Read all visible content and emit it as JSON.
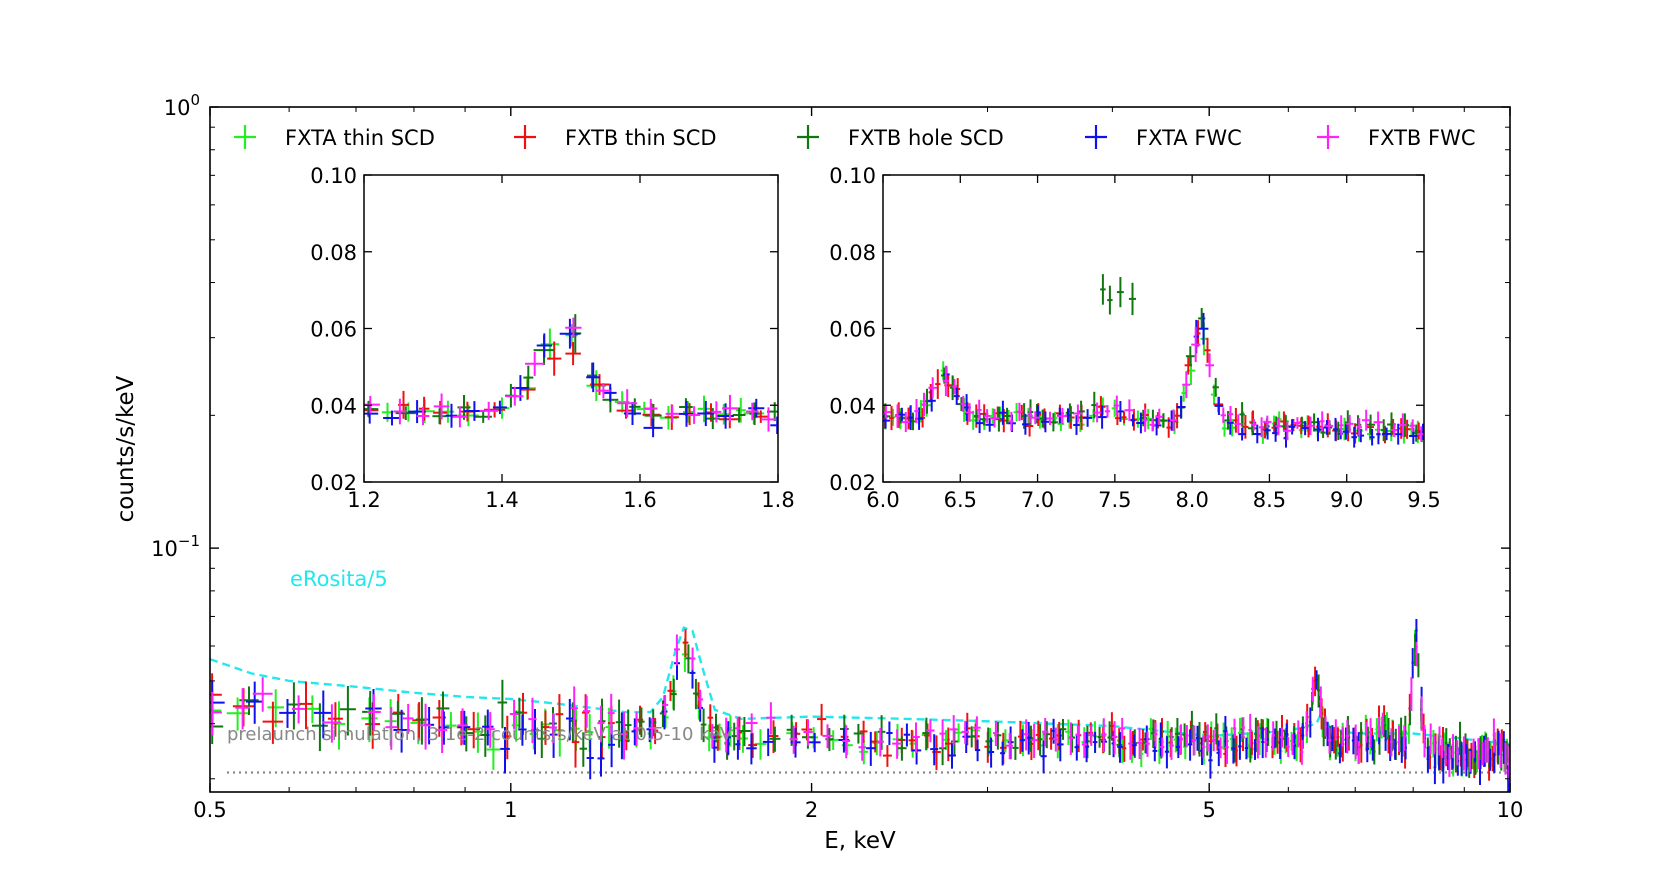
{
  "chart_data": {
    "type": "scatter",
    "title": "",
    "xlabel": "E, keV",
    "ylabel": "counts/s/keV",
    "x_scale": "log",
    "y_scale": "log",
    "xlim": [
      0.5,
      10
    ],
    "ylim": [
      0.028,
      1.0
    ],
    "x_ticks": [
      0.5,
      1,
      2,
      5,
      10
    ],
    "x_tick_labels": [
      "0.5",
      "1",
      "2",
      "5",
      "10"
    ],
    "y_tick_base": [
      "10",
      "10"
    ],
    "y_tick_exp": [
      "0",
      "−1"
    ],
    "y_tick_values": [
      1.0,
      0.1
    ],
    "legend_position": "top",
    "series": [
      {
        "name": "FXTA thin SCD",
        "color": "#22ee22",
        "type": "errorbar",
        "base": 0.0365,
        "al_amp": 0.019,
        "cu_amp": 0.022,
        "seed": 11
      },
      {
        "name": "FXTB thin SCD",
        "color": "#ee1111",
        "type": "errorbar",
        "base": 0.037,
        "al_amp": 0.019,
        "cu_amp": 0.026,
        "seed": 23
      },
      {
        "name": "FXTB hole SCD",
        "color": "#117711",
        "type": "errorbar",
        "base": 0.0372,
        "al_amp": 0.018,
        "cu_amp": 0.025,
        "seed": 37
      },
      {
        "name": "FXTA FWC",
        "color": "#1111ee",
        "type": "errorbar",
        "base": 0.036,
        "al_amp": 0.021,
        "cu_amp": 0.03,
        "seed": 51
      },
      {
        "name": "FXTB FWC",
        "color": "#ff22ff",
        "type": "errorbar",
        "base": 0.0372,
        "al_amp": 0.024,
        "cu_amp": 0.022,
        "seed": 67
      }
    ],
    "reference_lines": [
      {
        "name": "eRosita/5",
        "color": "#22e8ee",
        "style": "dashed",
        "points": [
          [
            0.5,
            0.056
          ],
          [
            0.55,
            0.052
          ],
          [
            0.6,
            0.05
          ],
          [
            0.7,
            0.0485
          ],
          [
            0.8,
            0.047
          ],
          [
            0.9,
            0.046
          ],
          [
            1.0,
            0.0455
          ],
          [
            1.1,
            0.0445
          ],
          [
            1.2,
            0.0435
          ],
          [
            1.3,
            0.0425
          ],
          [
            1.38,
            0.0425
          ],
          [
            1.42,
            0.046
          ],
          [
            1.46,
            0.058
          ],
          [
            1.49,
            0.066
          ],
          [
            1.52,
            0.065
          ],
          [
            1.55,
            0.055
          ],
          [
            1.6,
            0.043
          ],
          [
            1.7,
            0.041
          ],
          [
            2.0,
            0.0415
          ],
          [
            2.5,
            0.041
          ],
          [
            3.0,
            0.0405
          ],
          [
            4.0,
            0.0395
          ],
          [
            5.0,
            0.0375
          ],
          [
            6.0,
            0.0385
          ],
          [
            6.4,
            0.04
          ],
          [
            6.5,
            0.043
          ],
          [
            6.6,
            0.039
          ],
          [
            7.0,
            0.038
          ],
          [
            8.0,
            0.038
          ],
          [
            10.0,
            0.036
          ]
        ]
      },
      {
        "name": "prelaunch simulation",
        "color": "#888888",
        "style": "dotted",
        "value": 0.031
      }
    ],
    "annotations": [
      {
        "text": "eRosita/5",
        "color": "#22e8ee"
      },
      {
        "text": "prelaunch simulation, 3.1e-2 counts/s/keV at 0.5-10 keV",
        "color": "#888888"
      }
    ],
    "insets": [
      {
        "xlim": [
          1.2,
          1.8
        ],
        "ylim": [
          0.02,
          0.1
        ],
        "x_ticks": [
          1.2,
          1.4,
          1.6,
          1.8
        ],
        "x_tick_labels": [
          "1.2",
          "1.4",
          "1.6",
          "1.8"
        ],
        "y_ticks": [
          0.02,
          0.04,
          0.06,
          0.08,
          0.1
        ],
        "y_tick_labels": [
          "0.02",
          "0.04",
          "0.06",
          "0.08",
          "0.10"
        ]
      },
      {
        "xlim": [
          6.0,
          9.5
        ],
        "ylim": [
          0.02,
          0.1
        ],
        "x_ticks": [
          6.0,
          6.5,
          7.0,
          7.5,
          8.0,
          8.5,
          9.0,
          9.5
        ],
        "x_tick_labels": [
          "6.0",
          "6.5",
          "7.0",
          "7.5",
          "8.0",
          "8.5",
          "9.0",
          "9.5"
        ],
        "y_ticks": [
          0.02,
          0.04,
          0.06,
          0.08,
          0.1
        ],
        "y_tick_labels": [
          "0.02",
          "0.04",
          "0.06",
          "0.08",
          "0.10"
        ]
      }
    ]
  }
}
